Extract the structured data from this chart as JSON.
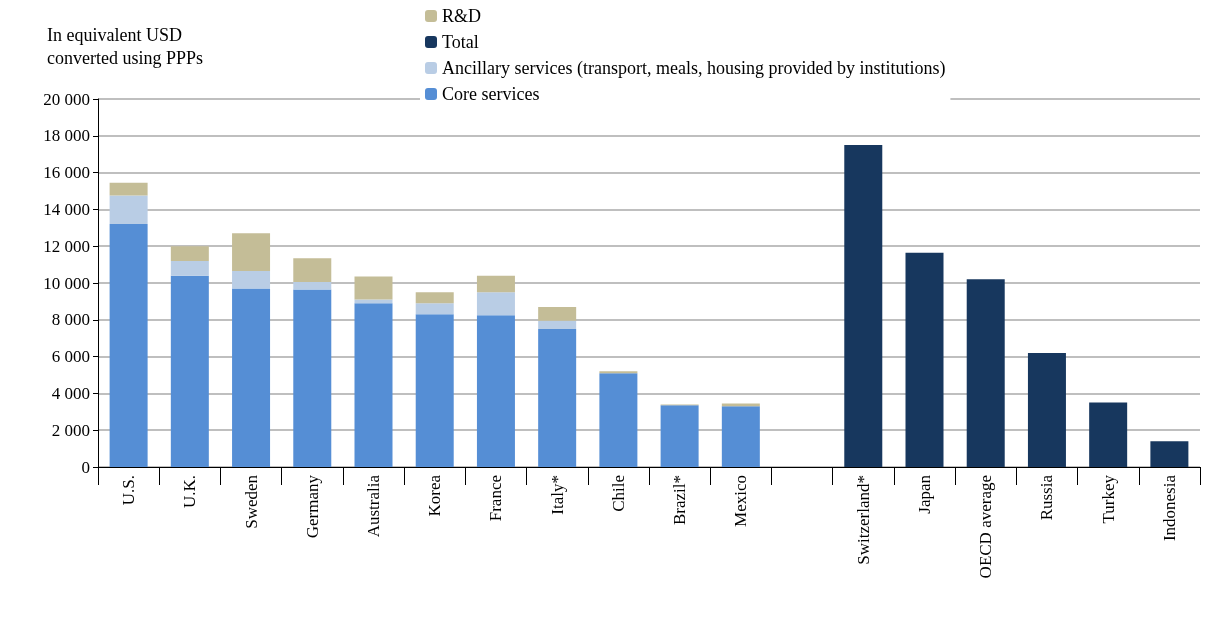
{
  "chart_data": {
    "type": "bar",
    "ylabel": "In equivalent USD\nconverted using PPPs",
    "categories": [
      "U.S.",
      "U.K.",
      "Sweden",
      "Germany",
      "Australia",
      "Korea",
      "France",
      "Italy*",
      "Chile",
      "Brazil*",
      "Mexico",
      null,
      "Switzerland*",
      "Japan",
      "OECD average",
      "Russia",
      "Turkey",
      "Indonesia"
    ],
    "stacked": true,
    "series": [
      {
        "name": "Core services",
        "color": "#558ed5",
        "values": [
          13200,
          10400,
          9700,
          9650,
          8900,
          8300,
          8250,
          7500,
          5100,
          3350,
          3300,
          null,
          null,
          null,
          null,
          null,
          null,
          null
        ]
      },
      {
        "name": "Ancillary services (transport, meals, housing provided by institutions)",
        "color": "#b9cde5",
        "values": [
          1550,
          800,
          950,
          400,
          200,
          600,
          1250,
          450,
          0,
          0,
          0,
          null,
          null,
          null,
          null,
          null,
          null,
          null
        ]
      },
      {
        "name": "Total",
        "color": "#17375e",
        "values": [
          null,
          null,
          null,
          null,
          null,
          null,
          null,
          null,
          null,
          null,
          null,
          null,
          17500,
          11650,
          10200,
          6200,
          3500,
          1400
        ]
      },
      {
        "name": "R&D",
        "color": "#c4bd97",
        "values": [
          700,
          800,
          2050,
          1300,
          1250,
          600,
          900,
          750,
          100,
          50,
          150,
          null,
          null,
          null,
          null,
          null,
          null,
          null
        ]
      }
    ],
    "ylim": [
      0,
      20000
    ],
    "yticks": [
      {
        "value": 0,
        "label": "0"
      },
      {
        "value": 2000,
        "label": "2 000"
      },
      {
        "value": 4000,
        "label": "4 000"
      },
      {
        "value": 6000,
        "label": "6 000"
      },
      {
        "value": 8000,
        "label": "8 000"
      },
      {
        "value": 10000,
        "label": "10 000"
      },
      {
        "value": 12000,
        "label": "12 000"
      },
      {
        "value": 14000,
        "label": "14 000"
      },
      {
        "value": 16000,
        "label": "16 000"
      },
      {
        "value": 18000,
        "label": "18 000"
      },
      {
        "value": 20000,
        "label": "20 000"
      }
    ],
    "grid": "y",
    "legend": "top"
  }
}
